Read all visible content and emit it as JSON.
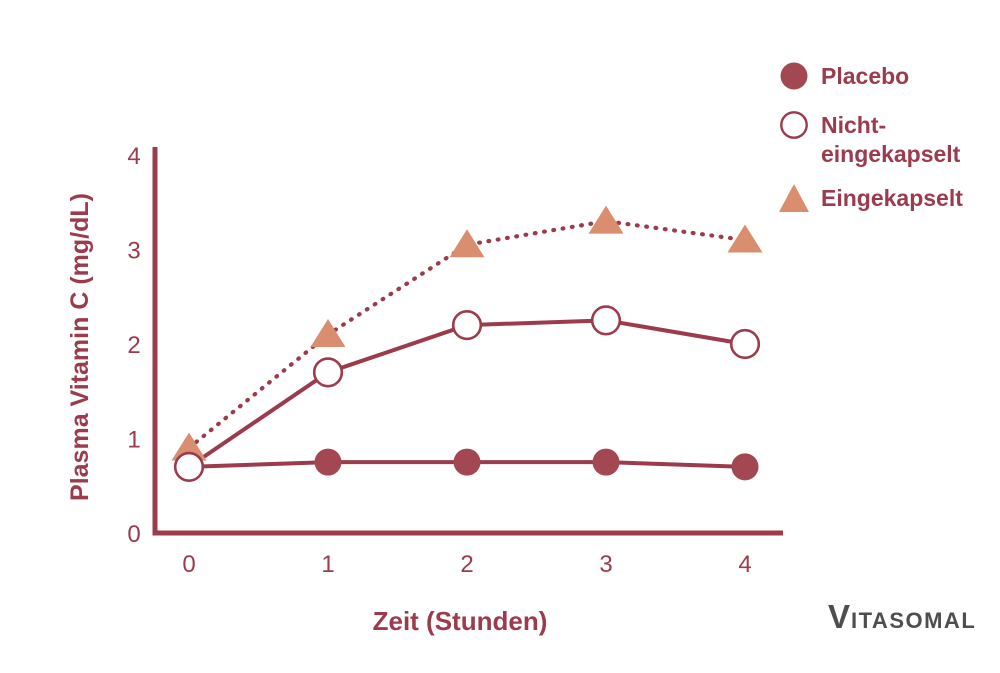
{
  "figure": {
    "background": "#ffffff"
  },
  "chart_data": {
    "type": "line",
    "title": "",
    "xlabel": "Zeit (Stunden)",
    "ylabel": "Plasma Vitamin C (mg/dL)",
    "x": [
      0,
      1,
      2,
      3,
      4
    ],
    "x_ticks": [
      "0",
      "1",
      "2",
      "3",
      "4"
    ],
    "y_ticks": [
      "0",
      "1",
      "2",
      "3",
      "4"
    ],
    "xlim": [
      0,
      4
    ],
    "ylim": [
      0,
      4
    ],
    "grid": false,
    "legend_position": "top-right",
    "series": [
      {
        "name": "Placebo",
        "values": [
          0.7,
          0.75,
          0.75,
          0.75,
          0.7
        ],
        "line_style": "solid",
        "marker": "filled-circle",
        "line_color": "#9C3B4B",
        "marker_color": "#A34852"
      },
      {
        "name": "Nicht-eingekapselt",
        "values": [
          0.7,
          1.7,
          2.2,
          2.25,
          2.0
        ],
        "line_style": "solid",
        "marker": "open-circle",
        "line_color": "#9C3B4B",
        "marker_color": "#ffffff"
      },
      {
        "name": "Eingekapselt",
        "values": [
          0.9,
          2.1,
          3.05,
          3.3,
          3.1
        ],
        "line_style": "dotted",
        "marker": "triangle",
        "line_color": "#9C3B4B",
        "marker_color": "#D98E70"
      }
    ]
  },
  "legend": {
    "items": [
      {
        "label": "Placebo",
        "label_lines": [
          "Placebo"
        ],
        "marker": "filled-circle"
      },
      {
        "label": "Nicht-eingekapselt",
        "label_lines": [
          "Nicht-",
          "eingekapselt"
        ],
        "marker": "open-circle"
      },
      {
        "label": "Eingekapselt",
        "label_lines": [
          "Eingekapselt"
        ],
        "marker": "triangle"
      }
    ]
  },
  "colors": {
    "accent_red": "#9C3B4B",
    "marker_red": "#A34852",
    "marker_salmon": "#D98E70",
    "axis": "#9C3B4B",
    "logo_gray": "#4E4E4E",
    "background": "#ffffff"
  },
  "logo": {
    "initial": "V",
    "rest": "ITASOMAL",
    "full": "VITASOMAL"
  }
}
